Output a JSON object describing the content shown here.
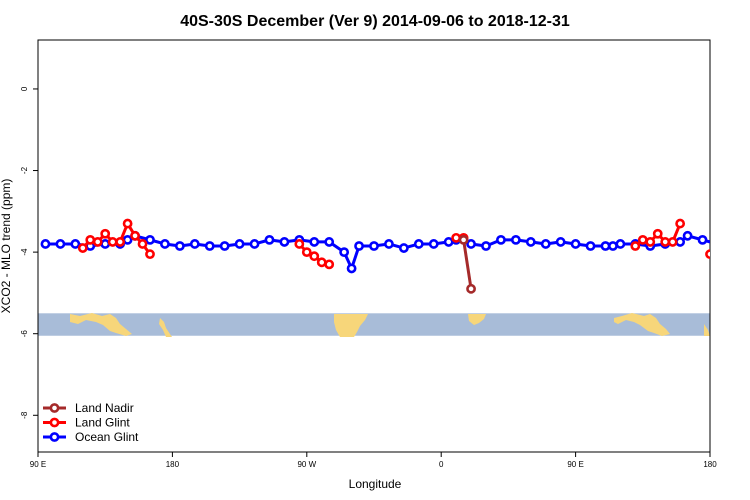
{
  "chart_data": {
    "type": "line",
    "title": "40S-30S December (Ver 9)   2014-09-06 to 2018-12-31",
    "xlabel": "Longitude",
    "ylabel": "XCO2 - MLO trend (ppm)",
    "xlim": [
      90,
      540
    ],
    "ylim": [
      -8.9,
      1.2
    ],
    "x_ticks": [
      {
        "value": 90,
        "label": "90 E"
      },
      {
        "value": 180,
        "label": "180"
      },
      {
        "value": 270,
        "label": "90 W"
      },
      {
        "value": 360,
        "label": "0"
      },
      {
        "value": 450,
        "label": "90 E"
      },
      {
        "value": 540,
        "label": "180"
      }
    ],
    "y_ticks": [
      {
        "value": 0,
        "label": "0"
      },
      {
        "value": -2,
        "label": "-2"
      },
      {
        "value": -4,
        "label": "-4"
      },
      {
        "value": -6,
        "label": "-6"
      },
      {
        "value": -8,
        "label": "-8"
      }
    ],
    "map_strip": {
      "y_top": -5.5,
      "y_bottom": -6.05,
      "ocean_color": "#a8bcd8",
      "land_color": "#f7d67a"
    },
    "legend_position": "bottom-left",
    "series": [
      {
        "name": "Land Nadir",
        "color": "#a52a2a",
        "points": [
          [
            375,
            -3.7
          ],
          [
            380,
            -4.9
          ]
        ]
      },
      {
        "name": "Land Glint",
        "color": "#ff0000",
        "points": [
          [
            120,
            -3.9
          ],
          [
            125,
            -3.7
          ],
          [
            130,
            -3.75
          ],
          [
            135,
            -3.55
          ],
          [
            140,
            -3.75
          ],
          [
            145,
            -3.75
          ],
          [
            150,
            -3.3
          ],
          [
            155,
            -3.6
          ],
          [
            160,
            -3.8
          ],
          [
            165,
            -4.05
          ]
        ],
        "points2": [
          [
            265,
            -3.8
          ],
          [
            270,
            -4.0
          ],
          [
            275,
            -4.1
          ],
          [
            280,
            -4.25
          ],
          [
            285,
            -4.3
          ]
        ],
        "points3": [
          [
            370,
            -3.65
          ],
          [
            375,
            -3.65
          ]
        ],
        "points4": [
          [
            490,
            -3.85
          ],
          [
            495,
            -3.7
          ],
          [
            500,
            -3.75
          ],
          [
            505,
            -3.55
          ],
          [
            510,
            -3.75
          ],
          [
            515,
            -3.75
          ],
          [
            520,
            -3.3
          ]
        ],
        "points5": [
          [
            540,
            -4.05
          ]
        ]
      },
      {
        "name": "Ocean Glint",
        "color": "#0000ff",
        "points": [
          [
            95,
            -3.8
          ],
          [
            105,
            -3.8
          ],
          [
            115,
            -3.8
          ],
          [
            125,
            -3.85
          ],
          [
            135,
            -3.8
          ],
          [
            145,
            -3.8
          ],
          [
            150,
            -3.7
          ],
          [
            155,
            -3.6
          ],
          [
            165,
            -3.7
          ],
          [
            175,
            -3.8
          ],
          [
            185,
            -3.85
          ],
          [
            195,
            -3.8
          ],
          [
            205,
            -3.85
          ],
          [
            215,
            -3.85
          ],
          [
            225,
            -3.8
          ],
          [
            235,
            -3.8
          ],
          [
            245,
            -3.7
          ],
          [
            255,
            -3.75
          ],
          [
            265,
            -3.7
          ],
          [
            275,
            -3.75
          ],
          [
            285,
            -3.75
          ],
          [
            295,
            -4.0
          ],
          [
            300,
            -4.4
          ],
          [
            305,
            -3.85
          ],
          [
            315,
            -3.85
          ],
          [
            325,
            -3.8
          ],
          [
            335,
            -3.9
          ],
          [
            345,
            -3.8
          ],
          [
            355,
            -3.8
          ],
          [
            365,
            -3.75
          ],
          [
            370,
            -3.7
          ],
          [
            380,
            -3.8
          ],
          [
            390,
            -3.85
          ],
          [
            400,
            -3.7
          ],
          [
            410,
            -3.7
          ],
          [
            420,
            -3.75
          ],
          [
            430,
            -3.8
          ],
          [
            440,
            -3.75
          ],
          [
            450,
            -3.8
          ],
          [
            460,
            -3.85
          ],
          [
            470,
            -3.85
          ],
          [
            475,
            -3.85
          ],
          [
            480,
            -3.8
          ],
          [
            490,
            -3.8
          ],
          [
            500,
            -3.85
          ],
          [
            510,
            -3.8
          ],
          [
            520,
            -3.75
          ],
          [
            525,
            -3.6
          ],
          [
            535,
            -3.7
          ],
          [
            545,
            -3.8
          ]
        ]
      }
    ]
  }
}
